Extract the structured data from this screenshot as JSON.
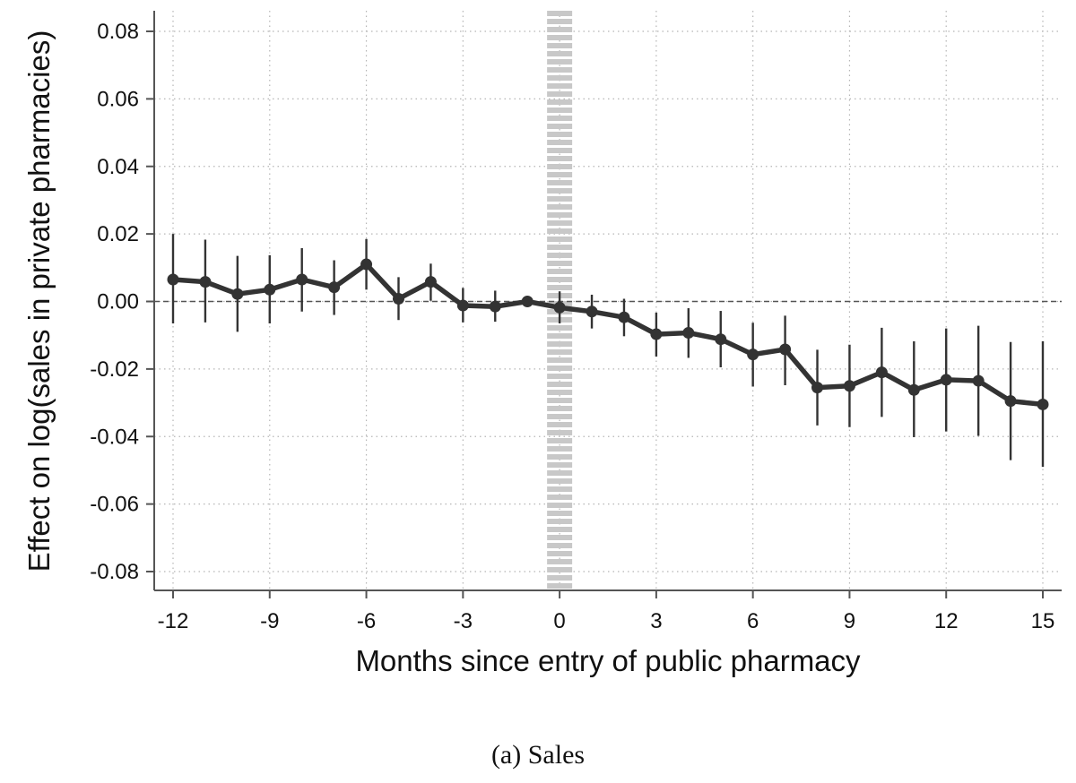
{
  "caption": "(a)  Sales",
  "chart_data": {
    "type": "line",
    "title": "",
    "xlabel": "Months since entry of public pharmacy",
    "ylabel": "Effect on log(sales in private pharmacies)",
    "xlim": [
      -12,
      15
    ],
    "ylim": [
      -0.08,
      0.08
    ],
    "x_ticks": [
      -12,
      -9,
      -6,
      -3,
      0,
      3,
      6,
      9,
      12,
      15
    ],
    "x_tick_labels": [
      "-12",
      "-9",
      "-6",
      "-3",
      "0",
      "3",
      "6",
      "9",
      "12",
      "15"
    ],
    "y_ticks": [
      0.08,
      0.06,
      0.04,
      0.02,
      0.0,
      -0.02,
      -0.04,
      -0.06,
      -0.08
    ],
    "y_tick_labels": [
      "0.08",
      "0.06",
      "0.04",
      "0.02",
      "0.00",
      "-0.02",
      "-0.04",
      "-0.06",
      "-0.08"
    ],
    "grid": true,
    "reference_lines": {
      "horizontal_y": 0.0,
      "vertical_x": 0
    },
    "colors": {
      "series": "#333333",
      "ci": "#333333",
      "grid": "#b5b5b5",
      "reference_vertical": "#c8c8c8",
      "axis": "#555555"
    },
    "series": [
      {
        "x": [
          -12,
          -11,
          -10,
          -9,
          -8,
          -7,
          -6,
          -5,
          -4,
          -3,
          -2,
          -1,
          0,
          1,
          2,
          3,
          4,
          5,
          6,
          7,
          8,
          9,
          10,
          11,
          12,
          13,
          14,
          15
        ],
        "values": [
          0.0065,
          0.0058,
          0.0022,
          0.0035,
          0.0065,
          0.0042,
          0.011,
          0.0008,
          0.0058,
          -0.0012,
          -0.0015,
          0.0,
          -0.0018,
          -0.003,
          -0.0047,
          -0.0097,
          -0.0093,
          -0.0112,
          -0.0157,
          -0.0142,
          -0.0255,
          -0.025,
          -0.021,
          -0.0262,
          -0.0232,
          -0.0235,
          -0.0295,
          -0.0305
        ],
        "ci_lower": [
          -0.0065,
          -0.0062,
          -0.009,
          -0.0065,
          -0.003,
          -0.004,
          0.0035,
          -0.0055,
          0.0002,
          -0.0062,
          -0.006,
          0.0,
          -0.0065,
          -0.008,
          -0.0103,
          -0.0163,
          -0.0167,
          -0.0195,
          -0.0252,
          -0.0248,
          -0.0367,
          -0.0372,
          -0.0342,
          -0.0402,
          -0.0385,
          -0.0398,
          -0.047,
          -0.049
        ],
        "ci_upper": [
          0.02,
          0.0183,
          0.0135,
          0.0137,
          0.0158,
          0.0122,
          0.0185,
          0.0072,
          0.0112,
          0.004,
          0.0032,
          0.0,
          0.003,
          0.002,
          0.0008,
          -0.0033,
          -0.002,
          -0.0028,
          -0.0063,
          -0.0042,
          -0.0143,
          -0.0128,
          -0.0078,
          -0.0118,
          -0.008,
          -0.0072,
          -0.012,
          -0.0118
        ]
      }
    ]
  }
}
